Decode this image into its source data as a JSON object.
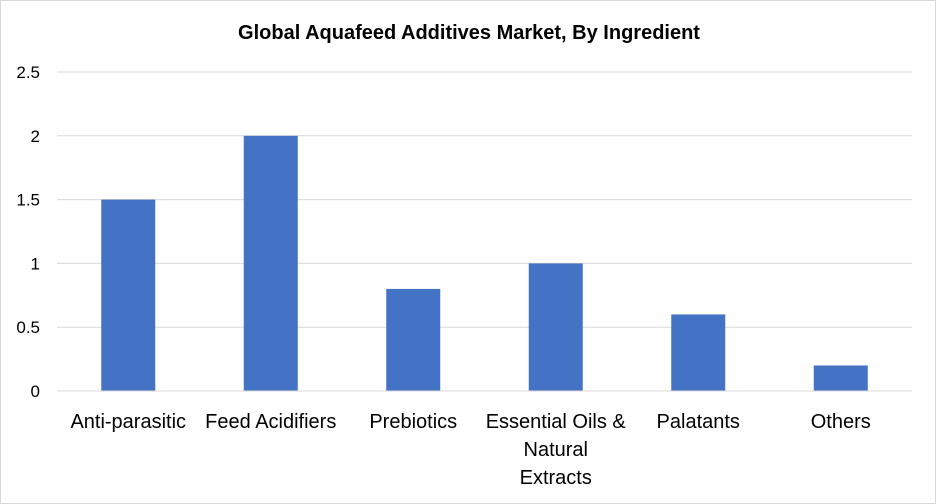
{
  "chart_data": {
    "type": "bar",
    "title": "Global Aquafeed Additives Market, By Ingredient",
    "categories": [
      [
        "Anti-parasitic"
      ],
      [
        "Feed Acidifiers"
      ],
      [
        "Prebiotics"
      ],
      [
        "Essential Oils &",
        "Natural",
        "Extracts"
      ],
      [
        "Palatants"
      ],
      [
        "Others"
      ]
    ],
    "values": [
      1.5,
      2.0,
      0.8,
      1.0,
      0.6,
      0.2
    ],
    "ylim": [
      0,
      2.5
    ],
    "yticks": [
      "0",
      "0.5",
      "1",
      "1.5",
      "2",
      "2.5"
    ],
    "xlabel": "",
    "ylabel": "",
    "grid": true,
    "bar_color": "#4472c4",
    "grid_color": "#d9d9d9"
  }
}
